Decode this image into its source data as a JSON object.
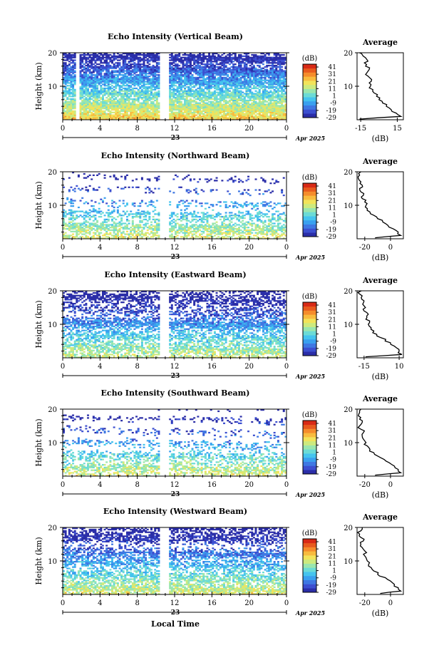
{
  "figure": {
    "xlabel": "Local Time",
    "date_label": "Apr 2025",
    "day_label": "23",
    "cbar_unit": "(dB)",
    "avg_title": "Average",
    "avg_xlabel": "(dB)",
    "ylabel": "Height (km)"
  },
  "colorbar": {
    "ticks": [
      "41",
      "31",
      "21",
      "11",
      "1",
      "-9",
      "-19",
      "-29"
    ],
    "colors": [
      "#2b2ea8",
      "#3c4fd0",
      "#3f78e3",
      "#3aa0ef",
      "#45c4ee",
      "#6bdbd6",
      "#9ae6ae",
      "#cdea7e",
      "#f2e35a",
      "#f8bb3e",
      "#f58c2c",
      "#e85a1e",
      "#d82a16"
    ]
  },
  "chart_data": [
    {
      "type": "heatmap",
      "title": "Echo Intensity (Vertical Beam)",
      "ylabel": "Height (km)",
      "xlabel": "",
      "x_ticks": [
        "0",
        "4",
        "8",
        "12",
        "16",
        "20",
        "0"
      ],
      "xlim": [
        0,
        24
      ],
      "ylim": [
        0,
        20
      ],
      "y_ticks": [
        10,
        20
      ],
      "colorbar_range_db": [
        -29,
        41
      ],
      "gap_hours": [
        [
          1.5,
          1.8
        ],
        [
          10.4,
          11.4
        ]
      ],
      "avg_profile": {
        "x_ticks": [
          "-15",
          "15"
        ],
        "x_tick_values": [
          -15,
          15
        ],
        "xlim": [
          -18,
          20
        ],
        "dB": [
          -16,
          18,
          14,
          10,
          6,
          3,
          0,
          -2,
          -4,
          -5,
          -7,
          -8,
          -6,
          -9,
          -10,
          -8,
          -11,
          -12,
          -10,
          -13,
          -14,
          -16
        ],
        "height_km": [
          0.2,
          1,
          2,
          3,
          4,
          5,
          6,
          7,
          8,
          9,
          10,
          11,
          12,
          13,
          14,
          15,
          16,
          17,
          18,
          19,
          19.6,
          20
        ]
      }
    },
    {
      "type": "heatmap",
      "title": "Echo Intensity (Northward Beam)",
      "ylabel": "Height (km)",
      "xlabel": "",
      "x_ticks": [
        "0",
        "4",
        "8",
        "12",
        "16",
        "20",
        "0"
      ],
      "xlim": [
        0,
        24
      ],
      "ylim": [
        0,
        20
      ],
      "y_ticks": [
        10,
        20
      ],
      "colorbar_range_db": [
        -29,
        41
      ],
      "gap_hours": [
        [
          10.4,
          11.4
        ]
      ],
      "avg_profile": {
        "x_ticks": [
          "-20",
          "0"
        ],
        "x_tick_values": [
          -20,
          0
        ],
        "xlim": [
          -26,
          10
        ],
        "dB": [
          -12,
          8,
          6,
          2,
          -2,
          -6,
          -10,
          -13,
          -16,
          -18,
          -19,
          -20,
          -22,
          -21,
          -23,
          -24,
          -22,
          -23,
          -25,
          -24,
          -23
        ],
        "height_km": [
          0.3,
          1,
          2,
          3,
          4,
          5,
          6,
          7,
          8,
          9,
          10,
          11,
          12,
          13,
          14,
          15,
          16,
          17,
          18,
          19,
          20
        ]
      }
    },
    {
      "type": "heatmap",
      "title": "Echo Intensity (Eastward Beam)",
      "ylabel": "Height (km)",
      "xlabel": "",
      "x_ticks": [
        "0",
        "4",
        "8",
        "12",
        "16",
        "20",
        "0"
      ],
      "xlim": [
        0,
        24
      ],
      "ylim": [
        0,
        20
      ],
      "y_ticks": [
        10,
        20
      ],
      "colorbar_range_db": [
        -29,
        41
      ],
      "gap_hours": [
        [
          10.4,
          11.4
        ]
      ],
      "avg_profile": {
        "x_ticks": [
          "-15",
          "10"
        ],
        "x_tick_values": [
          -15,
          10
        ],
        "xlim": [
          -20,
          13
        ],
        "dB": [
          -14,
          12,
          10,
          8,
          4,
          0,
          -3,
          -6,
          -8,
          -10,
          -12,
          -11,
          -13,
          -12,
          -15,
          -14,
          -16,
          -15,
          -17,
          -18,
          -17
        ],
        "height_km": [
          0.3,
          1,
          2,
          3,
          4,
          5,
          6,
          7,
          8,
          9,
          10,
          11,
          12,
          13,
          14,
          15,
          16,
          17,
          18,
          19,
          20
        ]
      }
    },
    {
      "type": "heatmap",
      "title": "Echo Intensity (Southward Beam)",
      "ylabel": "Height (km)",
      "xlabel": "",
      "x_ticks": [
        "0",
        "4",
        "8",
        "12",
        "16",
        "20",
        "0"
      ],
      "xlim": [
        0,
        24
      ],
      "ylim": [
        0,
        20
      ],
      "y_ticks": [
        10,
        20
      ],
      "colorbar_range_db": [
        -29,
        41
      ],
      "gap_hours": [
        [
          10.4,
          11.4
        ]
      ],
      "avg_profile": {
        "x_ticks": [
          "-20",
          "0"
        ],
        "x_tick_values": [
          -20,
          0
        ],
        "xlim": [
          -26,
          10
        ],
        "dB": [
          -12,
          8,
          6,
          3,
          -1,
          -5,
          -10,
          -13,
          -16,
          -18,
          -19,
          -21,
          -22,
          -21,
          -23,
          -24,
          -22,
          -24,
          -25,
          -24,
          -23
        ],
        "height_km": [
          0.3,
          1,
          2,
          3,
          4,
          5,
          6,
          7,
          8,
          9,
          10,
          11,
          12,
          13,
          14,
          15,
          16,
          17,
          18,
          19,
          20
        ]
      }
    },
    {
      "type": "heatmap",
      "title": "Echo Intensity (Westward Beam)",
      "ylabel": "Height (km)",
      "xlabel": "Local Time",
      "x_ticks": [
        "0",
        "4",
        "8",
        "12",
        "16",
        "20",
        "0"
      ],
      "xlim": [
        0,
        24
      ],
      "ylim": [
        0,
        20
      ],
      "y_ticks": [
        10,
        20
      ],
      "colorbar_range_db": [
        -29,
        41
      ],
      "gap_hours": [
        [
          10.4,
          11.4
        ]
      ],
      "avg_profile": {
        "x_ticks": [
          "-20",
          "0"
        ],
        "x_tick_values": [
          -20,
          0
        ],
        "xlim": [
          -26,
          10
        ],
        "dB": [
          -8,
          8,
          6,
          3,
          0,
          -4,
          -10,
          -13,
          -15,
          -17,
          -18,
          -19,
          -21,
          -20,
          -22,
          -23,
          -21,
          -23,
          -24,
          -23,
          -22
        ],
        "height_km": [
          0.3,
          1,
          2,
          3,
          4,
          5,
          6,
          7,
          8,
          9,
          10,
          11,
          12,
          13,
          14,
          15,
          16,
          17,
          18,
          19,
          20
        ]
      }
    }
  ]
}
